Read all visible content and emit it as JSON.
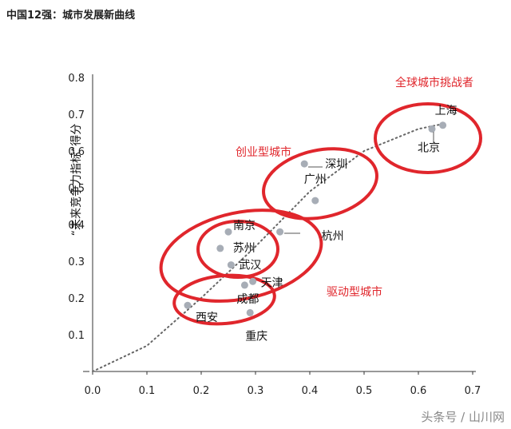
{
  "title": "中国12强：城市发展新曲线",
  "watermark": "头条号 / 山川网",
  "colors": {
    "point": "#a7adb6",
    "curve": "#666666",
    "circle": "#e0262c",
    "axis": "#333333"
  },
  "chart_data": {
    "type": "scatter",
    "ylabel": "“未来竞争力指标”得分",
    "xlabel": "",
    "xlim": [
      0,
      0.7
    ],
    "ylim": [
      0,
      0.8
    ],
    "xticks": [
      "0.0",
      "0.1",
      "0.2",
      "0.3",
      "0.4",
      "0.5",
      "0.6",
      "0.7"
    ],
    "yticks": [
      "0.1",
      "0.2",
      "0.3",
      "0.4",
      "0.5",
      "0.6",
      "0.7",
      "0.8"
    ],
    "points": [
      {
        "name": "上海",
        "x": 0.645,
        "y": 0.67
      },
      {
        "name": "北京",
        "x": 0.625,
        "y": 0.66
      },
      {
        "name": "深圳",
        "x": 0.39,
        "y": 0.565
      },
      {
        "name": "广州",
        "x": 0.41,
        "y": 0.465
      },
      {
        "name": "杭州",
        "x": 0.345,
        "y": 0.38
      },
      {
        "name": "南京",
        "x": 0.25,
        "y": 0.38
      },
      {
        "name": "苏州",
        "x": 0.235,
        "y": 0.335
      },
      {
        "name": "武汉",
        "x": 0.255,
        "y": 0.29
      },
      {
        "name": "天津",
        "x": 0.295,
        "y": 0.245
      },
      {
        "name": "成都",
        "x": 0.28,
        "y": 0.235
      },
      {
        "name": "西安",
        "x": 0.175,
        "y": 0.18
      },
      {
        "name": "重庆",
        "x": 0.29,
        "y": 0.16
      }
    ],
    "trend": [
      [
        0,
        0
      ],
      [
        0.1,
        0.07
      ],
      [
        0.2,
        0.2
      ],
      [
        0.3,
        0.34
      ],
      [
        0.4,
        0.49
      ],
      [
        0.5,
        0.6
      ],
      [
        0.6,
        0.66
      ],
      [
        0.65,
        0.675
      ]
    ],
    "groups": [
      {
        "label": "全球城市挑战者",
        "members": [
          "上海",
          "北京"
        ]
      },
      {
        "label": "创业型城市",
        "members": [
          "深圳",
          "广州"
        ]
      },
      {
        "label": "驱动型城市",
        "members": [
          "南京",
          "苏州",
          "武汉",
          "天津",
          "成都",
          "西安",
          "重庆"
        ]
      }
    ]
  }
}
